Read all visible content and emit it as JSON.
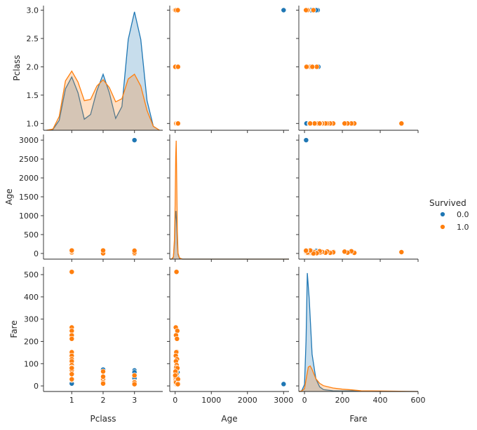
{
  "chart_data": {
    "type": "pairplot",
    "variables": [
      "Pclass",
      "Age",
      "Fare"
    ],
    "hue": "Survived",
    "legend": {
      "title": "Survived",
      "placement": "right",
      "entries": [
        {
          "label": "0.0",
          "color": "#1f77b4"
        },
        {
          "label": "1.0",
          "color": "#ff7f0e"
        }
      ]
    },
    "axes": {
      "Pclass": {
        "label": "Pclass",
        "range": [
          0.1,
          3.9
        ],
        "ticks": [
          "1",
          "2",
          "3"
        ]
      },
      "Age": {
        "label": "Age",
        "range": [
          -150,
          3150
        ],
        "ticks": [
          "0",
          "1000",
          "2000",
          "3000"
        ]
      },
      "Fare": {
        "label": "Fare",
        "range": [
          -30,
          600
        ],
        "ticks": [
          "0",
          "200",
          "400",
          "600"
        ]
      }
    },
    "row_axes": {
      "Pclass": {
        "label": "Pclass",
        "range": [
          0.88,
          3.08
        ],
        "ticks": [
          "1.0",
          "1.5",
          "2.0",
          "2.5",
          "3.0"
        ]
      },
      "Age": {
        "label": "Age",
        "range": [
          -150,
          3150
        ],
        "ticks": [
          "0",
          "500",
          "1000",
          "1500",
          "2000",
          "2500",
          "3000"
        ]
      },
      "Fare": {
        "label": "Fare",
        "range": [
          -25,
          535
        ],
        "ticks": [
          "0",
          "100",
          "200",
          "300",
          "400",
          "500"
        ]
      }
    },
    "series": [
      {
        "name": "0.0",
        "color": "#1f77b4",
        "points": [
          {
            "Pclass": 3,
            "Age": 22,
            "Fare": 7.25
          },
          {
            "Pclass": 3,
            "Age": 35,
            "Fare": 8.05
          },
          {
            "Pclass": 3,
            "Age": 3000,
            "Fare": 8.46
          },
          {
            "Pclass": 1,
            "Age": 54,
            "Fare": 51.86
          },
          {
            "Pclass": 3,
            "Age": 2,
            "Fare": 21.08
          },
          {
            "Pclass": 3,
            "Age": 20,
            "Fare": 8.05
          },
          {
            "Pclass": 3,
            "Age": 39,
            "Fare": 31.28
          },
          {
            "Pclass": 3,
            "Age": 14,
            "Fare": 7.85
          },
          {
            "Pclass": 3,
            "Age": 31,
            "Fare": 18.0
          },
          {
            "Pclass": 2,
            "Age": 35,
            "Fare": 26.0
          },
          {
            "Pclass": 2,
            "Age": 34,
            "Fare": 13.0
          },
          {
            "Pclass": 3,
            "Age": 28,
            "Fare": 69.55
          },
          {
            "Pclass": 1,
            "Age": 19,
            "Fare": 263.0
          },
          {
            "Pclass": 1,
            "Age": 40,
            "Fare": 27.72
          },
          {
            "Pclass": 1,
            "Age": 66,
            "Fare": 10.5
          },
          {
            "Pclass": 2,
            "Age": 28,
            "Fare": 73.5
          },
          {
            "Pclass": 1,
            "Age": 42,
            "Fare": 52.0
          },
          {
            "Pclass": 3,
            "Age": 21,
            "Fare": 56.5
          },
          {
            "Pclass": 3,
            "Age": 18,
            "Fare": 14.45
          },
          {
            "Pclass": 1,
            "Age": 38,
            "Fare": 90.0
          },
          {
            "Pclass": 3,
            "Age": 45,
            "Fare": 47.1
          },
          {
            "Pclass": 1,
            "Age": 24,
            "Fare": 79.2
          },
          {
            "Pclass": 2,
            "Age": 29,
            "Fare": 26.0
          },
          {
            "Pclass": 3,
            "Age": 65,
            "Fare": 61.98
          },
          {
            "Pclass": 3,
            "Age": 70,
            "Fare": 34.38
          }
        ]
      },
      {
        "name": "1.0",
        "color": "#ff7f0e",
        "points": [
          {
            "Pclass": 1,
            "Age": 38,
            "Fare": 71.28
          },
          {
            "Pclass": 3,
            "Age": 26,
            "Fare": 7.93
          },
          {
            "Pclass": 1,
            "Age": 35,
            "Fare": 53.1
          },
          {
            "Pclass": 3,
            "Age": 27,
            "Fare": 11.13
          },
          {
            "Pclass": 2,
            "Age": 14,
            "Fare": 30.07
          },
          {
            "Pclass": 3,
            "Age": 4,
            "Fare": 16.7
          },
          {
            "Pclass": 1,
            "Age": 58,
            "Fare": 26.55
          },
          {
            "Pclass": 2,
            "Age": 55,
            "Fare": 16.0
          },
          {
            "Pclass": 1,
            "Age": 36,
            "Fare": 512.33
          },
          {
            "Pclass": 1,
            "Age": 17,
            "Fare": 263.0
          },
          {
            "Pclass": 1,
            "Age": 60,
            "Fare": 247.52
          },
          {
            "Pclass": 1,
            "Age": 23,
            "Fare": 227.53
          },
          {
            "Pclass": 1,
            "Age": 49,
            "Fare": 211.5
          },
          {
            "Pclass": 1,
            "Age": 44,
            "Fare": 153.46
          },
          {
            "Pclass": 1,
            "Age": 30,
            "Fare": 151.55
          },
          {
            "Pclass": 1,
            "Age": 16,
            "Fare": 135.63
          },
          {
            "Pclass": 1,
            "Age": 52,
            "Fare": 120.0
          },
          {
            "Pclass": 1,
            "Age": 21,
            "Fare": 110.88
          },
          {
            "Pclass": 1,
            "Age": 40,
            "Fare": 93.5
          },
          {
            "Pclass": 1,
            "Age": 28,
            "Fare": 83.16
          },
          {
            "Pclass": 1,
            "Age": 62,
            "Fare": 80.0
          },
          {
            "Pclass": 2,
            "Age": 8,
            "Fare": 65.0
          },
          {
            "Pclass": 2,
            "Age": 3,
            "Fare": 41.58
          },
          {
            "Pclass": 3,
            "Age": 63,
            "Fare": 9.59
          },
          {
            "Pclass": 3,
            "Age": 13,
            "Fare": 19.26
          },
          {
            "Pclass": 3,
            "Age": 1,
            "Fare": 46.9
          },
          {
            "Pclass": 3,
            "Age": 24,
            "Fare": 15.85
          },
          {
            "Pclass": 1,
            "Age": 80,
            "Fare": 30.0
          },
          {
            "Pclass": 2,
            "Age": 80,
            "Fare": 10.5
          },
          {
            "Pclass": 3,
            "Age": 74,
            "Fare": 7.78
          }
        ]
      }
    ],
    "diagonal_kde": {
      "Pclass": {
        "0.0": {
          "x": [
            0.2,
            0.4,
            0.6,
            0.8,
            1.0,
            1.2,
            1.4,
            1.6,
            1.8,
            2.0,
            2.2,
            2.4,
            2.6,
            2.8,
            3.0,
            3.2,
            3.4,
            3.6,
            3.8
          ],
          "density": [
            0.0,
            0.02,
            0.25,
            1.05,
            1.35,
            0.95,
            0.28,
            0.4,
            1.0,
            1.42,
            0.95,
            0.3,
            0.6,
            2.3,
            3.0,
            2.3,
            0.75,
            0.1,
            0.0
          ]
        },
        "1.0": {
          "x": [
            0.2,
            0.4,
            0.6,
            0.8,
            1.0,
            1.2,
            1.4,
            1.6,
            1.8,
            2.0,
            2.2,
            2.4,
            2.6,
            2.8,
            3.0,
            3.2,
            3.4,
            3.6,
            3.8
          ],
          "density": [
            0.0,
            0.03,
            0.35,
            1.25,
            1.5,
            1.22,
            0.75,
            0.78,
            1.12,
            1.28,
            1.08,
            0.72,
            0.8,
            1.3,
            1.42,
            1.12,
            0.5,
            0.1,
            0.0
          ]
        }
      },
      "Age": {
        "0.0": {
          "x": [
            -150,
            -100,
            -50,
            -20,
            0,
            20,
            40,
            60,
            80,
            120,
            200,
            400,
            1000,
            2000,
            3150
          ],
          "density": [
            0.0,
            0.0,
            0.05,
            0.4,
            1.0,
            1.22,
            0.9,
            0.4,
            0.12,
            0.02,
            0.0,
            0.0,
            0.0,
            0.0,
            0.0
          ]
        },
        "1.0": {
          "x": [
            -150,
            -100,
            -50,
            -20,
            0,
            15,
            28,
            40,
            60,
            80,
            120,
            200,
            400,
            1000,
            3150
          ],
          "density": [
            0.0,
            0.0,
            0.06,
            0.5,
            1.4,
            2.6,
            3.0,
            2.2,
            0.7,
            0.15,
            0.03,
            0.0,
            0.0,
            0.0,
            0.0
          ]
        }
      },
      "Fare": {
        "0.0": {
          "x": [
            -30,
            -15,
            0,
            8,
            15,
            25,
            40,
            60,
            80,
            100,
            150,
            200,
            250,
            300,
            400,
            600
          ],
          "density": [
            0.0,
            0.02,
            0.3,
            2.2,
            5.1,
            4.0,
            1.6,
            0.55,
            0.2,
            0.08,
            0.03,
            0.02,
            0.03,
            0.01,
            0.0,
            0.0
          ]
        },
        "1.0": {
          "x": [
            -30,
            -15,
            0,
            10,
            20,
            30,
            40,
            60,
            80,
            100,
            150,
            200,
            250,
            300,
            400,
            500,
            600
          ],
          "density": [
            0.0,
            0.02,
            0.12,
            0.6,
            1.05,
            1.1,
            0.95,
            0.55,
            0.35,
            0.25,
            0.15,
            0.1,
            0.07,
            0.03,
            0.02,
            0.01,
            0.0
          ]
        }
      }
    }
  }
}
